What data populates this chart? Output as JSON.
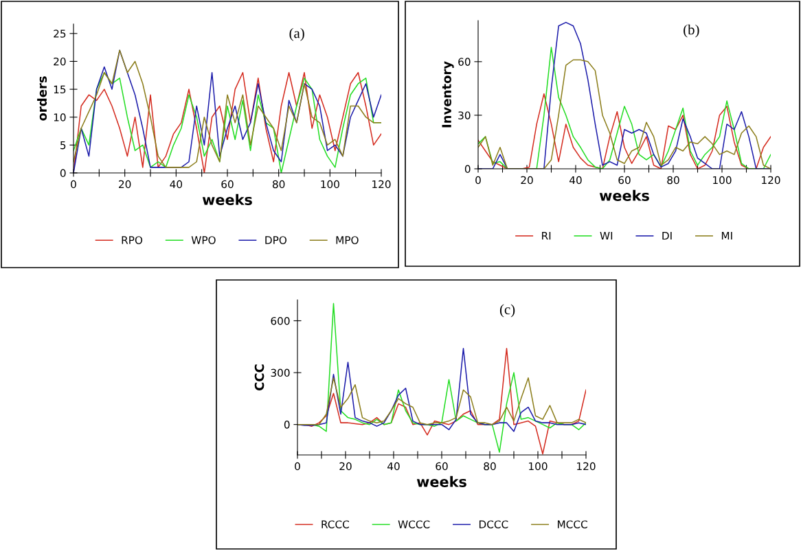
{
  "chart_data": [
    {
      "type": "line",
      "xlabel": "weeks",
      "ylabel": "orders",
      "annotations": [
        "(a)"
      ],
      "legend": "bottom",
      "grid": false,
      "x": [
        0,
        3,
        6,
        9,
        12,
        15,
        18,
        21,
        24,
        27,
        30,
        33,
        36,
        39,
        42,
        45,
        48,
        51,
        54,
        57,
        60,
        63,
        66,
        69,
        72,
        75,
        78,
        81,
        84,
        87,
        90,
        93,
        96,
        99,
        102,
        105,
        108,
        111,
        114,
        117,
        120
      ],
      "xlim": [
        0,
        120
      ],
      "ylim": [
        0,
        26.7
      ],
      "xticks": [
        0,
        {
          "value": 10,
          "label": null
        },
        20,
        {
          "value": 30,
          "label": null
        },
        40,
        {
          "value": 50,
          "label": null
        },
        60,
        {
          "value": 70,
          "label": null
        },
        80,
        {
          "value": 90,
          "label": null
        },
        100,
        {
          "value": 110,
          "label": null
        },
        120
      ],
      "yticks": [
        0,
        5,
        10,
        15,
        20,
        25
      ],
      "series": [
        {
          "name": "RPO",
          "color": "#d42a1e",
          "values": [
            0,
            12,
            14,
            13,
            15,
            12,
            8,
            3,
            10,
            1,
            14,
            1,
            3,
            7,
            9,
            15,
            8,
            0,
            10,
            12,
            6,
            15,
            18,
            9,
            17,
            8,
            2,
            12,
            18,
            12,
            18,
            8,
            14,
            10,
            4,
            10,
            16,
            18,
            12,
            5,
            7
          ]
        },
        {
          "name": "WPO",
          "color": "#22dd22",
          "values": [
            4,
            8,
            5,
            15,
            18,
            16,
            17,
            10,
            4,
            5,
            1,
            2,
            1,
            5,
            8,
            14,
            10,
            3,
            6,
            2,
            12,
            6,
            13,
            4,
            14,
            9,
            8,
            0,
            6,
            12,
            17,
            15,
            6,
            3,
            1,
            8,
            14,
            16,
            17,
            9,
            9
          ]
        },
        {
          "name": "DPO",
          "color": "#1a1aaa",
          "values": [
            0,
            8,
            3,
            15,
            19,
            15,
            22,
            18,
            14,
            8,
            1,
            1,
            1,
            1,
            1,
            2,
            12,
            5,
            18,
            3,
            8,
            12,
            6,
            9,
            16,
            9,
            4,
            2,
            13,
            9,
            16,
            15,
            12,
            4,
            5,
            3,
            10,
            13,
            16,
            10,
            14
          ]
        },
        {
          "name": "MPO",
          "color": "#8b7d1a",
          "values": [
            2,
            8,
            11,
            14,
            18,
            16,
            22,
            18,
            20,
            16,
            10,
            3,
            1,
            1,
            1,
            1,
            2,
            10,
            5,
            2,
            14,
            9,
            14,
            5,
            12,
            10,
            8,
            4,
            12,
            9,
            16,
            10,
            9,
            5,
            6,
            3,
            12,
            12,
            10,
            9,
            9
          ]
        }
      ]
    },
    {
      "type": "line",
      "xlabel": "weeks",
      "ylabel": "Inventory",
      "annotations": [
        "(b)"
      ],
      "legend": "bottom",
      "grid": false,
      "x": [
        0,
        3,
        6,
        9,
        12,
        15,
        18,
        21,
        24,
        27,
        30,
        33,
        36,
        39,
        42,
        45,
        48,
        51,
        54,
        57,
        60,
        63,
        66,
        69,
        72,
        75,
        78,
        81,
        84,
        87,
        90,
        93,
        96,
        99,
        102,
        105,
        108,
        111,
        114,
        117,
        120
      ],
      "xlim": [
        0,
        120
      ],
      "ylim": [
        0,
        83
      ],
      "xticks": [
        0,
        {
          "value": 10,
          "label": null
        },
        20,
        {
          "value": 30,
          "label": null
        },
        40,
        {
          "value": 50,
          "label": null
        },
        60,
        {
          "value": 70,
          "label": null
        },
        80,
        {
          "value": 90,
          "label": null
        },
        100,
        {
          "value": 110,
          "label": null
        },
        120
      ],
      "yticks": [
        0,
        30,
        60
      ],
      "series": [
        {
          "name": "RI",
          "color": "#d42a1e",
          "values": [
            16,
            10,
            4,
            2,
            0,
            0,
            0,
            1,
            25,
            42,
            25,
            4,
            25,
            12,
            6,
            2,
            1,
            0,
            18,
            32,
            12,
            3,
            10,
            18,
            2,
            0,
            24,
            22,
            30,
            8,
            0,
            2,
            10,
            30,
            35,
            15,
            2,
            0,
            0,
            12,
            18
          ]
        },
        {
          "name": "WI",
          "color": "#22dd22",
          "values": [
            14,
            18,
            3,
            4,
            0,
            0,
            0,
            0,
            0,
            30,
            68,
            40,
            30,
            18,
            12,
            5,
            1,
            0,
            5,
            20,
            35,
            25,
            8,
            5,
            8,
            1,
            10,
            22,
            34,
            10,
            2,
            8,
            12,
            18,
            38,
            22,
            3,
            0,
            0,
            0,
            8
          ]
        },
        {
          "name": "DI",
          "color": "#1a1aaa",
          "values": [
            0,
            0,
            0,
            8,
            0,
            0,
            0,
            0,
            0,
            0,
            45,
            80,
            82,
            80,
            70,
            50,
            25,
            2,
            4,
            2,
            22,
            20,
            22,
            20,
            8,
            1,
            3,
            10,
            28,
            18,
            6,
            3,
            0,
            0,
            25,
            22,
            32,
            18,
            0,
            0,
            0
          ]
        },
        {
          "name": "MI",
          "color": "#8b7d1a",
          "values": [
            12,
            18,
            2,
            12,
            0,
            0,
            0,
            0,
            0,
            0,
            5,
            30,
            58,
            61,
            61,
            60,
            55,
            30,
            20,
            5,
            3,
            10,
            12,
            26,
            18,
            2,
            5,
            12,
            10,
            15,
            14,
            18,
            14,
            8,
            10,
            8,
            20,
            24,
            18,
            2,
            0
          ]
        }
      ]
    },
    {
      "type": "line",
      "xlabel": "weeks",
      "ylabel": "CCC",
      "annotations": [
        "(c)"
      ],
      "legend": "bottom",
      "grid": false,
      "x": [
        0,
        3,
        6,
        9,
        12,
        15,
        18,
        21,
        24,
        27,
        30,
        33,
        36,
        39,
        42,
        45,
        48,
        51,
        54,
        57,
        60,
        63,
        66,
        69,
        72,
        75,
        78,
        81,
        84,
        87,
        90,
        93,
        96,
        99,
        102,
        105,
        108,
        111,
        114,
        117,
        120
      ],
      "xlim": [
        0,
        120
      ],
      "ylim": [
        -176,
        721
      ],
      "xticks": [
        0,
        {
          "value": 10,
          "label": null
        },
        20,
        {
          "value": 30,
          "label": null
        },
        40,
        {
          "value": 50,
          "label": null
        },
        60,
        {
          "value": 70,
          "label": null
        },
        80,
        {
          "value": 90,
          "label": null
        },
        100,
        {
          "value": 110,
          "label": null
        },
        120
      ],
      "yticks": [
        0,
        300,
        600
      ],
      "series": [
        {
          "name": "RCCC",
          "color": "#d42a1e",
          "values": [
            0,
            0,
            -10,
            10,
            50,
            180,
            10,
            10,
            5,
            0,
            10,
            40,
            0,
            10,
            120,
            100,
            0,
            10,
            -60,
            20,
            10,
            0,
            20,
            60,
            80,
            0,
            0,
            0,
            30,
            440,
            0,
            10,
            20,
            -10,
            -170,
            20,
            10,
            0,
            0,
            20,
            200
          ]
        },
        {
          "name": "WCCC",
          "color": "#22dd22",
          "values": [
            0,
            0,
            0,
            -10,
            -40,
            700,
            80,
            40,
            30,
            10,
            0,
            30,
            0,
            10,
            200,
            80,
            10,
            0,
            0,
            -10,
            10,
            260,
            20,
            50,
            30,
            10,
            0,
            0,
            -160,
            120,
            300,
            30,
            40,
            20,
            0,
            -20,
            10,
            0,
            0,
            -30,
            10
          ]
        },
        {
          "name": "DCCC",
          "color": "#1a1aaa",
          "values": [
            0,
            -5,
            -5,
            0,
            10,
            290,
            60,
            360,
            40,
            20,
            10,
            -10,
            10,
            80,
            170,
            210,
            20,
            0,
            0,
            0,
            0,
            -30,
            30,
            440,
            60,
            10,
            0,
            0,
            10,
            10,
            -40,
            70,
            100,
            20,
            10,
            10,
            0,
            0,
            0,
            10,
            0
          ]
        },
        {
          "name": "MCCC",
          "color": "#8b7d1a",
          "values": [
            0,
            0,
            0,
            0,
            60,
            270,
            100,
            150,
            230,
            40,
            20,
            10,
            20,
            80,
            150,
            120,
            100,
            10,
            0,
            10,
            10,
            20,
            40,
            200,
            160,
            10,
            10,
            0,
            20,
            100,
            20,
            150,
            270,
            50,
            30,
            110,
            10,
            10,
            10,
            30,
            10
          ]
        }
      ]
    }
  ]
}
